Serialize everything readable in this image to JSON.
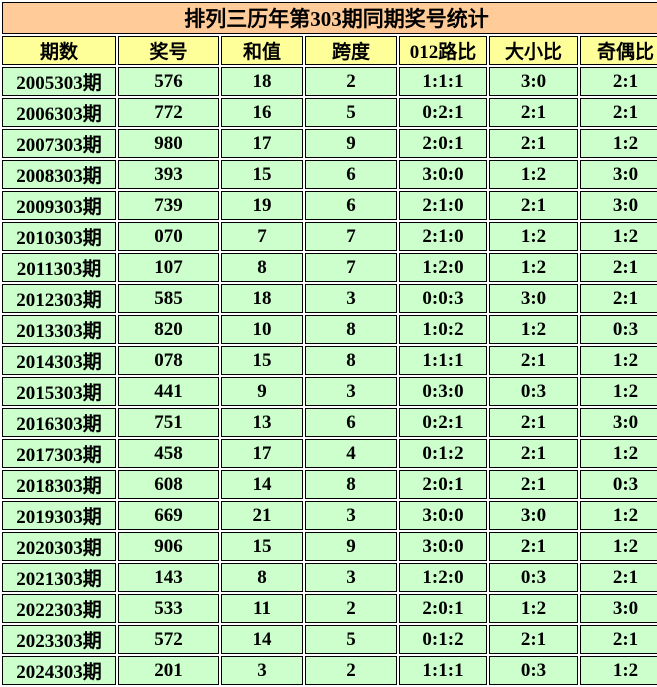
{
  "title": "排列三历年第303期同期奖号统计",
  "table": {
    "columns": [
      "期数",
      "奖号",
      "和值",
      "跨度",
      "012路比",
      "大小比",
      "奇偶比"
    ],
    "rows": [
      [
        "2005303期",
        "576",
        "18",
        "2",
        "1:1:1",
        "3:0",
        "2:1"
      ],
      [
        "2006303期",
        "772",
        "16",
        "5",
        "0:2:1",
        "2:1",
        "2:1"
      ],
      [
        "2007303期",
        "980",
        "17",
        "9",
        "2:0:1",
        "2:1",
        "1:2"
      ],
      [
        "2008303期",
        "393",
        "15",
        "6",
        "3:0:0",
        "1:2",
        "3:0"
      ],
      [
        "2009303期",
        "739",
        "19",
        "6",
        "2:1:0",
        "2:1",
        "3:0"
      ],
      [
        "2010303期",
        "070",
        "7",
        "7",
        "2:1:0",
        "1:2",
        "1:2"
      ],
      [
        "2011303期",
        "107",
        "8",
        "7",
        "1:2:0",
        "1:2",
        "2:1"
      ],
      [
        "2012303期",
        "585",
        "18",
        "3",
        "0:0:3",
        "3:0",
        "2:1"
      ],
      [
        "2013303期",
        "820",
        "10",
        "8",
        "1:0:2",
        "1:2",
        "0:3"
      ],
      [
        "2014303期",
        "078",
        "15",
        "8",
        "1:1:1",
        "2:1",
        "1:2"
      ],
      [
        "2015303期",
        "441",
        "9",
        "3",
        "0:3:0",
        "0:3",
        "1:2"
      ],
      [
        "2016303期",
        "751",
        "13",
        "6",
        "0:2:1",
        "2:1",
        "3:0"
      ],
      [
        "2017303期",
        "458",
        "17",
        "4",
        "0:1:2",
        "2:1",
        "1:2"
      ],
      [
        "2018303期",
        "608",
        "14",
        "8",
        "2:0:1",
        "2:1",
        "0:3"
      ],
      [
        "2019303期",
        "669",
        "21",
        "3",
        "3:0:0",
        "3:0",
        "1:2"
      ],
      [
        "2020303期",
        "906",
        "15",
        "9",
        "3:0:0",
        "2:1",
        "1:2"
      ],
      [
        "2021303期",
        "143",
        "8",
        "3",
        "1:2:0",
        "0:3",
        "2:1"
      ],
      [
        "2022303期",
        "533",
        "11",
        "2",
        "2:0:1",
        "1:2",
        "3:0"
      ],
      [
        "2023303期",
        "572",
        "14",
        "5",
        "0:1:2",
        "2:1",
        "2:1"
      ],
      [
        "2024303期",
        "201",
        "3",
        "2",
        "1:1:1",
        "0:3",
        "1:2"
      ]
    ]
  },
  "colors": {
    "title_bg": "#FFCC99",
    "header_bg": "#FFFF99",
    "cell_bg": "#CCFFCC",
    "border": "#000000",
    "grid_gap": "#FFFFFF",
    "text": "#000000"
  }
}
